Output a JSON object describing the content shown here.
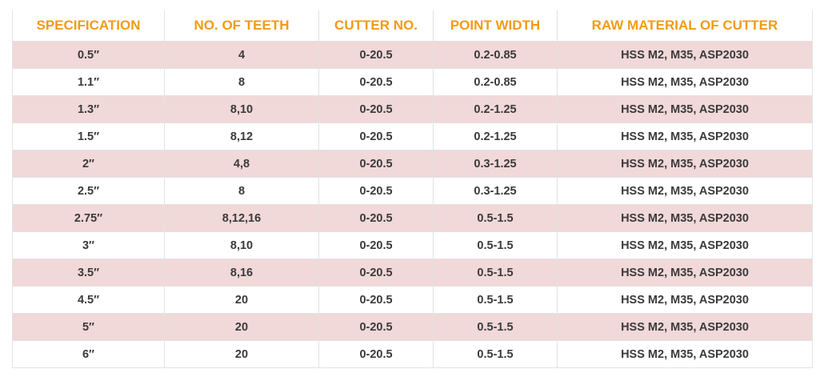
{
  "table": {
    "headers": [
      "SPECIFICATION",
      "NO. OF TEETH",
      "CUTTER NO.",
      "POINT WIDTH",
      "RAW MATERIAL OF CUTTER"
    ],
    "rows": [
      [
        "0.5″",
        "4",
        "0-20.5",
        "0.2-0.85",
        "HSS M2, M35, ASP2030"
      ],
      [
        "1.1″",
        "8",
        "0-20.5",
        "0.2-0.85",
        "HSS M2, M35, ASP2030"
      ],
      [
        "1.3″",
        "8,10",
        "0-20.5",
        "0.2-1.25",
        "HSS M2, M35, ASP2030"
      ],
      [
        "1.5″",
        "8,12",
        "0-20.5",
        "0.2-1.25",
        "HSS M2, M35, ASP2030"
      ],
      [
        "2″",
        "4,8",
        "0-20.5",
        "0.3-1.25",
        "HSS M2, M35, ASP2030"
      ],
      [
        "2.5″",
        "8",
        "0-20.5",
        "0.3-1.25",
        "HSS M2, M35, ASP2030"
      ],
      [
        "2.75″",
        "8,12,16",
        "0-20.5",
        "0.5-1.5",
        "HSS M2, M35, ASP2030"
      ],
      [
        "3″",
        "8,10",
        "0-20.5",
        "0.5-1.5",
        "HSS M2, M35, ASP2030"
      ],
      [
        "3.5″",
        "8,16",
        "0-20.5",
        "0.5-1.5",
        "HSS M2, M35, ASP2030"
      ],
      [
        "4.5″",
        "20",
        "0-20.5",
        "0.5-1.5",
        "HSS M2, M35, ASP2030"
      ],
      [
        "5″",
        "20",
        "0-20.5",
        "0.5-1.5",
        "HSS M2, M35, ASP2030"
      ],
      [
        "6″",
        "20",
        "0-20.5",
        "0.5-1.5",
        "HSS M2, M35, ASP2030"
      ]
    ]
  },
  "colors": {
    "header_text": "#f39a14",
    "stripe_row": "#f1d8d9",
    "plain_row": "#ffffff",
    "cell_text": "#3a3a3a",
    "border": "#e3e3e3"
  }
}
